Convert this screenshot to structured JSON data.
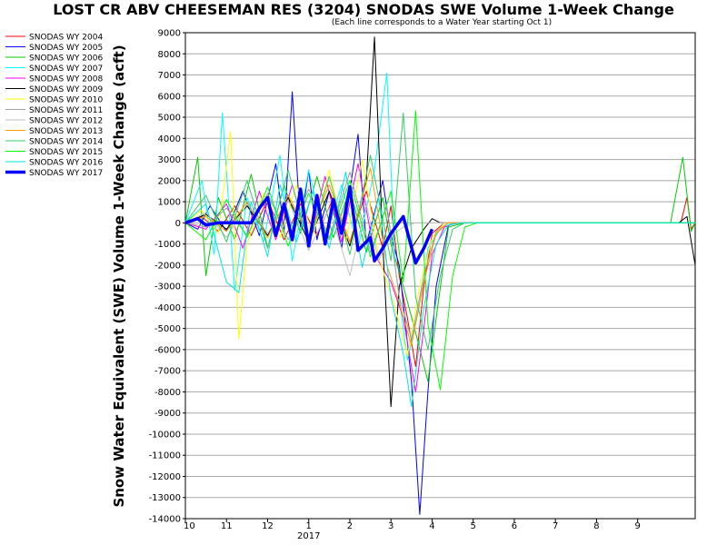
{
  "chart_data": {
    "type": "line",
    "title": "LOST CR ABV CHEESEMAN RES (3204) SNODAS SWE Volume 1-Week Change",
    "subtitle": "(Each line corresponds to a Water Year starting Oct 1)",
    "ylabel": "Snow Water Equivalent (SWE) Volume 1-Week Change (acft)",
    "xlabel": "",
    "ylim": [
      -14000,
      9000
    ],
    "xlim": [
      0,
      12.4
    ],
    "yticks": [
      9000,
      8000,
      7000,
      6000,
      5000,
      4000,
      3000,
      2000,
      1000,
      0,
      -1000,
      -2000,
      -3000,
      -4000,
      -5000,
      -6000,
      -7000,
      -8000,
      -9000,
      -10000,
      -11000,
      -12000,
      -13000,
      -14000
    ],
    "xtick_labels": [
      "10",
      "11",
      "12",
      "1",
      "2",
      "3",
      "4",
      "5",
      "6",
      "7",
      "8",
      "9"
    ],
    "xtick_sublabel": "2017",
    "grid": true,
    "legend_position": "left",
    "series": [
      {
        "name": "SNODAS WY 2004",
        "color": "#ff0000",
        "values": [
          [
            0,
            0
          ],
          [
            0.4,
            300
          ],
          [
            0.8,
            -400
          ],
          [
            1.2,
            800
          ],
          [
            1.6,
            -600
          ],
          [
            2.0,
            1100
          ],
          [
            2.4,
            -800
          ],
          [
            2.8,
            900
          ],
          [
            3.2,
            -600
          ],
          [
            3.6,
            1200
          ],
          [
            4.0,
            -900
          ],
          [
            4.4,
            1500
          ],
          [
            4.8,
            -1200
          ],
          [
            5.0,
            800
          ],
          [
            5.2,
            -2500
          ],
          [
            5.4,
            -4500
          ],
          [
            5.6,
            -6800
          ],
          [
            5.8,
            -3000
          ],
          [
            6.0,
            -500
          ],
          [
            6.3,
            0
          ],
          [
            9.8,
            0
          ],
          [
            12.05,
            0
          ],
          [
            12.2,
            1200
          ],
          [
            12.3,
            -300
          ],
          [
            12.4,
            0
          ]
        ]
      },
      {
        "name": "SNODAS WY 2005",
        "color": "#0000ff",
        "values": [
          [
            0,
            0
          ],
          [
            0.3,
            -300
          ],
          [
            0.6,
            800
          ],
          [
            1.0,
            -400
          ],
          [
            1.4,
            1500
          ],
          [
            1.8,
            -600
          ],
          [
            2.2,
            2800
          ],
          [
            2.4,
            -400
          ],
          [
            2.6,
            6200
          ],
          [
            2.8,
            -200
          ],
          [
            3.0,
            2500
          ],
          [
            3.2,
            -800
          ],
          [
            3.5,
            1500
          ],
          [
            3.8,
            -1200
          ],
          [
            4.2,
            4200
          ],
          [
            4.4,
            -1000
          ],
          [
            4.8,
            2000
          ],
          [
            5.0,
            -600
          ],
          [
            5.2,
            -2000
          ],
          [
            5.5,
            -7500
          ],
          [
            5.7,
            -13800
          ],
          [
            5.9,
            -8000
          ],
          [
            6.1,
            -3000
          ],
          [
            6.4,
            -100
          ],
          [
            6.7,
            0
          ],
          [
            12.4,
            0
          ]
        ]
      },
      {
        "name": "SNODAS WY 2006",
        "color": "#00cc00",
        "values": [
          [
            0,
            0
          ],
          [
            0.3,
            3100
          ],
          [
            0.5,
            -2500
          ],
          [
            0.8,
            1200
          ],
          [
            1.2,
            -800
          ],
          [
            1.6,
            2300
          ],
          [
            2.0,
            -1200
          ],
          [
            2.4,
            1800
          ],
          [
            2.8,
            -500
          ],
          [
            3.2,
            2200
          ],
          [
            3.6,
            -700
          ],
          [
            4.0,
            1600
          ],
          [
            4.4,
            -1400
          ],
          [
            4.8,
            1200
          ],
          [
            5.0,
            -1000
          ],
          [
            5.3,
            -3000
          ],
          [
            5.6,
            -5200
          ],
          [
            5.9,
            -7500
          ],
          [
            6.1,
            -4500
          ],
          [
            6.4,
            -200
          ],
          [
            6.8,
            0
          ],
          [
            11.8,
            0
          ],
          [
            12.1,
            3100
          ],
          [
            12.3,
            -400
          ],
          [
            12.4,
            0
          ]
        ]
      },
      {
        "name": "SNODAS WY 2007",
        "color": "#00ffff",
        "values": [
          [
            0,
            0
          ],
          [
            0.4,
            2000
          ],
          [
            0.7,
            -1500
          ],
          [
            0.9,
            5200
          ],
          [
            1.2,
            -3200
          ],
          [
            1.5,
            1200
          ],
          [
            1.9,
            -900
          ],
          [
            2.3,
            3200
          ],
          [
            2.6,
            -1800
          ],
          [
            3.0,
            2500
          ],
          [
            3.4,
            -800
          ],
          [
            3.8,
            1800
          ],
          [
            4.2,
            -1200
          ],
          [
            4.6,
            2500
          ],
          [
            4.9,
            7100
          ],
          [
            5.1,
            -2000
          ],
          [
            5.4,
            -6500
          ],
          [
            5.7,
            -3800
          ],
          [
            5.9,
            -1200
          ],
          [
            6.2,
            -300
          ],
          [
            6.5,
            0
          ],
          [
            12.4,
            0
          ]
        ]
      },
      {
        "name": "SNODAS WY 2008",
        "color": "#ff00ff",
        "values": [
          [
            0,
            0
          ],
          [
            0.5,
            -300
          ],
          [
            1.0,
            900
          ],
          [
            1.4,
            -1200
          ],
          [
            1.8,
            1500
          ],
          [
            2.2,
            -800
          ],
          [
            2.6,
            1800
          ],
          [
            3.0,
            -1000
          ],
          [
            3.4,
            2200
          ],
          [
            3.8,
            -900
          ],
          [
            4.2,
            2800
          ],
          [
            4.6,
            -1500
          ],
          [
            5.0,
            -2800
          ],
          [
            5.3,
            -4500
          ],
          [
            5.6,
            -8000
          ],
          [
            5.8,
            -5000
          ],
          [
            6.0,
            -1500
          ],
          [
            6.3,
            -200
          ],
          [
            6.6,
            0
          ],
          [
            12.4,
            0
          ]
        ]
      },
      {
        "name": "SNODAS WY 2009",
        "color": "#000000",
        "values": [
          [
            0,
            0
          ],
          [
            0.5,
            400
          ],
          [
            1.0,
            -300
          ],
          [
            1.5,
            800
          ],
          [
            2.0,
            -600
          ],
          [
            2.5,
            1200
          ],
          [
            3.0,
            -900
          ],
          [
            3.5,
            1500
          ],
          [
            4.0,
            -1100
          ],
          [
            4.4,
            2000
          ],
          [
            4.6,
            8800
          ],
          [
            4.8,
            -1000
          ],
          [
            5.0,
            -8700
          ],
          [
            5.2,
            -3000
          ],
          [
            5.5,
            -1200
          ],
          [
            5.8,
            -300
          ],
          [
            6.0,
            200
          ],
          [
            6.2,
            0
          ],
          [
            12.0,
            0
          ],
          [
            12.2,
            300
          ],
          [
            12.4,
            -2000
          ]
        ]
      },
      {
        "name": "SNODAS WY 2010",
        "color": "#ffff00",
        "values": [
          [
            0,
            0
          ],
          [
            0.4,
            600
          ],
          [
            0.8,
            -500
          ],
          [
            1.1,
            4300
          ],
          [
            1.3,
            -5500
          ],
          [
            1.5,
            -1000
          ],
          [
            1.9,
            1400
          ],
          [
            2.3,
            -700
          ],
          [
            2.7,
            1800
          ],
          [
            3.1,
            -600
          ],
          [
            3.5,
            2500
          ],
          [
            3.9,
            -900
          ],
          [
            4.3,
            3000
          ],
          [
            4.7,
            -1600
          ],
          [
            5.1,
            -4000
          ],
          [
            5.4,
            -6300
          ],
          [
            5.7,
            -3000
          ],
          [
            6.0,
            -700
          ],
          [
            6.3,
            0
          ],
          [
            12.4,
            0
          ]
        ]
      },
      {
        "name": "SNODAS WY 2011",
        "color": "#a0a0a0",
        "values": [
          [
            0,
            0
          ],
          [
            0.5,
            -200
          ],
          [
            1.0,
            700
          ],
          [
            1.5,
            -600
          ],
          [
            2.0,
            1400
          ],
          [
            2.5,
            -800
          ],
          [
            3.0,
            1600
          ],
          [
            3.5,
            -700
          ],
          [
            4.0,
            2400
          ],
          [
            4.5,
            -1400
          ],
          [
            4.9,
            800
          ],
          [
            5.2,
            -3500
          ],
          [
            5.5,
            -5500
          ],
          [
            5.8,
            -2500
          ],
          [
            6.1,
            -400
          ],
          [
            6.4,
            0
          ],
          [
            12.4,
            0
          ]
        ]
      },
      {
        "name": "SNODAS WY 2012",
        "color": "#c0c0c0",
        "values": [
          [
            0,
            0
          ],
          [
            0.5,
            500
          ],
          [
            1.0,
            -700
          ],
          [
            1.5,
            900
          ],
          [
            2.0,
            -500
          ],
          [
            2.5,
            1100
          ],
          [
            3.0,
            -1300
          ],
          [
            3.5,
            700
          ],
          [
            4.0,
            -2500
          ],
          [
            4.4,
            900
          ],
          [
            4.7,
            -1800
          ],
          [
            5.0,
            -600
          ],
          [
            5.3,
            -200
          ],
          [
            5.6,
            0
          ],
          [
            12.4,
            0
          ]
        ]
      },
      {
        "name": "SNODAS WY 2013",
        "color": "#ff9900",
        "values": [
          [
            0,
            0
          ],
          [
            0.5,
            300
          ],
          [
            1.0,
            -400
          ],
          [
            1.5,
            1000
          ],
          [
            2.0,
            -700
          ],
          [
            2.5,
            1300
          ],
          [
            3.0,
            -600
          ],
          [
            3.5,
            1800
          ],
          [
            4.0,
            -900
          ],
          [
            4.5,
            2600
          ],
          [
            4.9,
            -2000
          ],
          [
            5.2,
            -3800
          ],
          [
            5.5,
            -5800
          ],
          [
            5.8,
            -2800
          ],
          [
            6.1,
            -500
          ],
          [
            6.4,
            0
          ],
          [
            12.4,
            0
          ]
        ]
      },
      {
        "name": "SNODAS WY 2014",
        "color": "#33cc66",
        "values": [
          [
            0,
            0
          ],
          [
            0.5,
            1300
          ],
          [
            1.0,
            -900
          ],
          [
            1.5,
            2000
          ],
          [
            2.0,
            -1200
          ],
          [
            2.5,
            2500
          ],
          [
            3.0,
            -1000
          ],
          [
            3.5,
            2200
          ],
          [
            4.0,
            -1500
          ],
          [
            4.5,
            3200
          ],
          [
            5.0,
            -1800
          ],
          [
            5.3,
            5200
          ],
          [
            5.6,
            -3500
          ],
          [
            5.9,
            -6000
          ],
          [
            6.2,
            -2500
          ],
          [
            6.5,
            -300
          ],
          [
            6.8,
            0
          ],
          [
            12.4,
            0
          ]
        ]
      },
      {
        "name": "SNODAS WY 2015",
        "color": "#00ff00",
        "values": [
          [
            0,
            0
          ],
          [
            0.5,
            -800
          ],
          [
            1.0,
            1100
          ],
          [
            1.5,
            -700
          ],
          [
            2.0,
            1700
          ],
          [
            2.5,
            -1100
          ],
          [
            3.0,
            1400
          ],
          [
            3.5,
            -800
          ],
          [
            4.0,
            2000
          ],
          [
            4.5,
            -1600
          ],
          [
            5.0,
            1500
          ],
          [
            5.3,
            -2800
          ],
          [
            5.6,
            5300
          ],
          [
            5.9,
            -4800
          ],
          [
            6.2,
            -7900
          ],
          [
            6.5,
            -2500
          ],
          [
            6.8,
            -200
          ],
          [
            7.1,
            0
          ],
          [
            12.4,
            0
          ]
        ]
      },
      {
        "name": "SNODAS WY 2016",
        "color": "#00e5e5",
        "values": [
          [
            0,
            0
          ],
          [
            0.5,
            900
          ],
          [
            1.0,
            -2800
          ],
          [
            1.3,
            -3300
          ],
          [
            1.6,
            1000
          ],
          [
            2.0,
            -1600
          ],
          [
            2.3,
            1800
          ],
          [
            2.7,
            -900
          ],
          [
            3.1,
            1500
          ],
          [
            3.5,
            -1200
          ],
          [
            3.9,
            2400
          ],
          [
            4.3,
            -2100
          ],
          [
            4.7,
            1200
          ],
          [
            5.0,
            -3500
          ],
          [
            5.3,
            -6200
          ],
          [
            5.5,
            -8700
          ],
          [
            5.8,
            -4000
          ],
          [
            6.1,
            -1000
          ],
          [
            6.4,
            -100
          ],
          [
            6.7,
            0
          ],
          [
            12.4,
            0
          ]
        ]
      },
      {
        "name": "SNODAS WY 2017",
        "color": "#0000ff",
        "bold": true,
        "values": [
          [
            0,
            0
          ],
          [
            0.3,
            200
          ],
          [
            0.5,
            -100
          ],
          [
            0.8,
            0
          ],
          [
            1.6,
            0
          ],
          [
            1.8,
            700
          ],
          [
            2.0,
            1200
          ],
          [
            2.2,
            -600
          ],
          [
            2.4,
            900
          ],
          [
            2.6,
            -800
          ],
          [
            2.8,
            1600
          ],
          [
            3.0,
            -1100
          ],
          [
            3.2,
            1300
          ],
          [
            3.4,
            -1000
          ],
          [
            3.6,
            1100
          ],
          [
            3.8,
            -500
          ],
          [
            4.0,
            1700
          ],
          [
            4.2,
            -1300
          ],
          [
            4.5,
            -700
          ],
          [
            4.6,
            -1800
          ],
          [
            4.8,
            -1200
          ],
          [
            5.0,
            -500
          ],
          [
            5.3,
            300
          ],
          [
            5.6,
            -1900
          ],
          [
            5.8,
            -1200
          ],
          [
            6.0,
            -300
          ]
        ]
      }
    ]
  }
}
